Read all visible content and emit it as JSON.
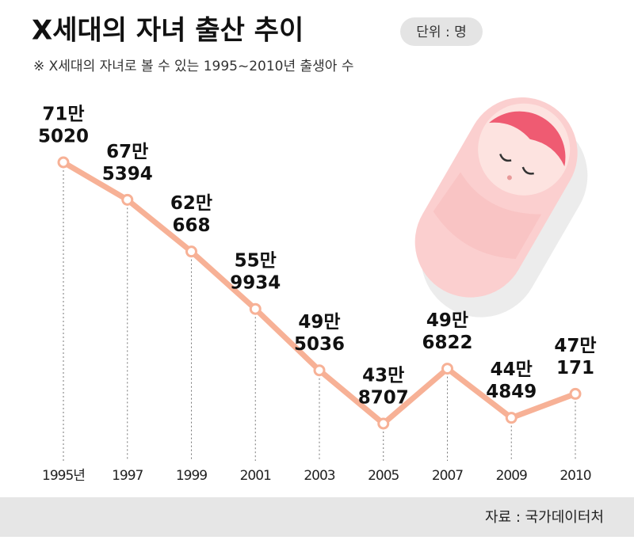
{
  "chart_data": {
    "type": "line",
    "title": "X세대의 자녀 출산 추이",
    "unit": "단위 : 명",
    "subtitle": "※ X세대의 자녀로 볼 수 있는 1995~2010년 출생아 수",
    "source": "자료 : 국가데이터처",
    "categories": [
      "1995년",
      "1997",
      "1999",
      "2001",
      "2003",
      "2005",
      "2007",
      "2009",
      "2010"
    ],
    "values": [
      715020,
      675394,
      620668,
      559934,
      495036,
      438707,
      496822,
      444849,
      470171
    ],
    "value_labels": [
      [
        "71만",
        "5020"
      ],
      [
        "67만",
        "5394"
      ],
      [
        "62만",
        "668"
      ],
      [
        "55만",
        "9934"
      ],
      [
        "49만",
        "5036"
      ],
      [
        "43만",
        "8707"
      ],
      [
        "49만",
        "6822"
      ],
      [
        "44만",
        "4849"
      ],
      [
        "47만",
        "171"
      ]
    ],
    "color": "#f7b196"
  }
}
